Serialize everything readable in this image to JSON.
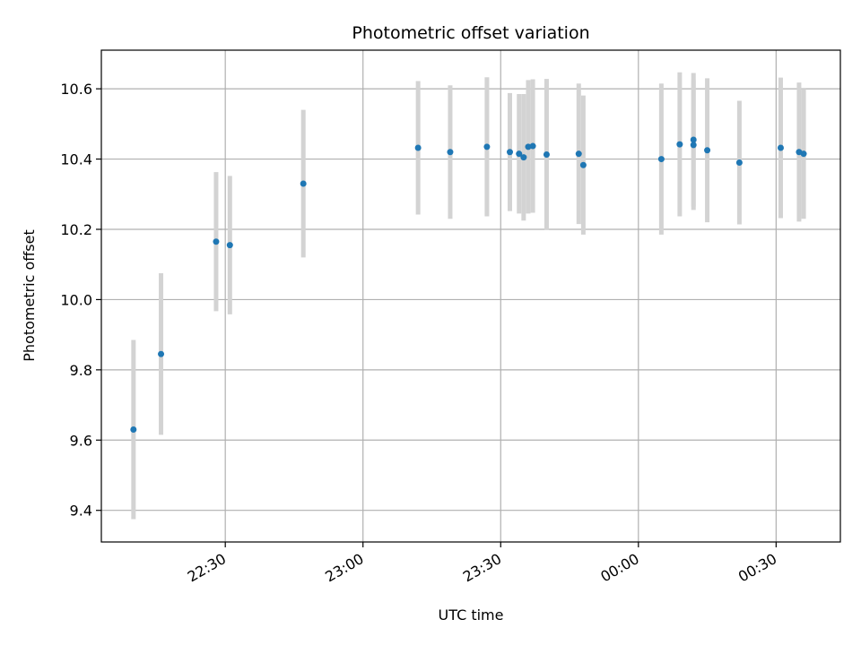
{
  "chart_data": {
    "type": "scatter",
    "title": "Photometric offset variation",
    "xlabel": "UTC time",
    "ylabel": "Photometric offset",
    "x_tick_labels": [
      "22:30",
      "23:00",
      "23:30",
      "00:00",
      "00:30"
    ],
    "y_tick_labels": [
      "9.4",
      "9.6",
      "9.8",
      "10.0",
      "10.2",
      "10.4",
      "10.6"
    ],
    "y_ticks": [
      9.4,
      9.6,
      9.8,
      10.0,
      10.2,
      10.4,
      10.6
    ],
    "xlim": [
      "22:03",
      "00:44"
    ],
    "ylim": [
      9.31,
      10.71
    ],
    "grid": true,
    "marker_color": "#1f77b4",
    "errorbar_color": "#d3d3d3",
    "points": [
      {
        "x": "22:10",
        "y": 9.63,
        "err": 0.255
      },
      {
        "x": "22:16",
        "y": 9.845,
        "err": 0.23
      },
      {
        "x": "22:28",
        "y": 10.165,
        "err": 0.198
      },
      {
        "x": "22:31",
        "y": 10.155,
        "err": 0.197
      },
      {
        "x": "22:47",
        "y": 10.33,
        "err": 0.21
      },
      {
        "x": "23:12",
        "y": 10.432,
        "err": 0.19
      },
      {
        "x": "23:19",
        "y": 10.42,
        "err": 0.19
      },
      {
        "x": "23:27",
        "y": 10.435,
        "err": 0.198
      },
      {
        "x": "23:32",
        "y": 10.42,
        "err": 0.168
      },
      {
        "x": "23:34",
        "y": 10.415,
        "err": 0.17
      },
      {
        "x": "23:35",
        "y": 10.405,
        "err": 0.18
      },
      {
        "x": "23:36",
        "y": 10.435,
        "err": 0.19
      },
      {
        "x": "23:37",
        "y": 10.437,
        "err": 0.19
      },
      {
        "x": "23:40",
        "y": 10.413,
        "err": 0.215
      },
      {
        "x": "23:47",
        "y": 10.415,
        "err": 0.2
      },
      {
        "x": "23:48",
        "y": 10.383,
        "err": 0.198
      },
      {
        "x": "00:05",
        "y": 10.4,
        "err": 0.215
      },
      {
        "x": "00:09",
        "y": 10.442,
        "err": 0.205
      },
      {
        "x": "00:12",
        "y": 10.44,
        "err": 0.185
      },
      {
        "x": "00:12",
        "y": 10.455,
        "err": 0.19
      },
      {
        "x": "00:15",
        "y": 10.425,
        "err": 0.205
      },
      {
        "x": "00:22",
        "y": 10.39,
        "err": 0.176
      },
      {
        "x": "00:31",
        "y": 10.432,
        "err": 0.2
      },
      {
        "x": "00:35",
        "y": 10.42,
        "err": 0.198
      },
      {
        "x": "00:36",
        "y": 10.415,
        "err": 0.185
      }
    ]
  }
}
